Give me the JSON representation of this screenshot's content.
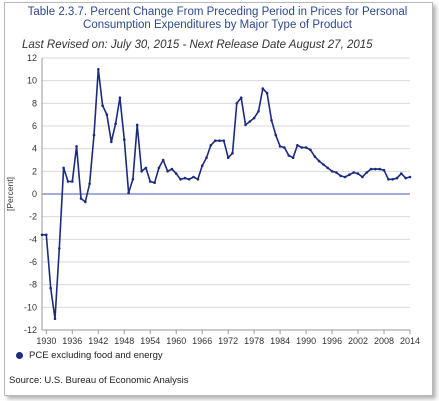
{
  "header": {
    "title_line1": "Table 2.3.7. Percent Change From Preceding Period in Prices for Personal",
    "title_line2": "Consumption Expenditures by Major Type of Product",
    "subtitle": "Last Revised on: July 30, 2015 - Next Release Date August 27, 2015"
  },
  "footer": {
    "legend_label": "PCE excluding food and energy",
    "source": "Source: U.S. Bureau of Economic  Analysis"
  },
  "colors": {
    "series": "#1c2a80",
    "title": "#2c4a8f",
    "grid": "#d9d9d9",
    "zero_line": "#4a5bb0"
  },
  "chart_data": {
    "type": "line",
    "title": "Table 2.3.7. Percent Change From Preceding Period in Prices for Personal Consumption Expenditures by Major Type of Product",
    "ylabel": "[Percent]",
    "xlabel": "",
    "ylim": [
      -12,
      12
    ],
    "xlim": [
      1929,
      2014
    ],
    "yticks": [
      -12,
      -10,
      -8,
      -6,
      -4,
      -2,
      0,
      2,
      4,
      6,
      8,
      10,
      12
    ],
    "xticks": [
      1930,
      1936,
      1942,
      1948,
      1954,
      1960,
      1966,
      1972,
      1978,
      1984,
      1990,
      1996,
      2002,
      2008,
      2014
    ],
    "grid": true,
    "legend_position": "bottom-left",
    "series": [
      {
        "name": "PCE excluding food and energy",
        "color": "#1c2a80",
        "points": [
          [
            1929,
            -3.6
          ],
          [
            1930,
            -3.6
          ],
          [
            1931,
            -8.3
          ],
          [
            1932,
            -11.0
          ],
          [
            1933,
            -4.8
          ],
          [
            1934,
            2.3
          ],
          [
            1935,
            1.1
          ],
          [
            1936,
            1.1
          ],
          [
            1937,
            4.2
          ],
          [
            1938,
            -0.4
          ],
          [
            1939,
            -0.7
          ],
          [
            1940,
            0.9
          ],
          [
            1941,
            5.2
          ],
          [
            1942,
            11.0
          ],
          [
            1943,
            7.8
          ],
          [
            1944,
            7.0
          ],
          [
            1945,
            4.6
          ],
          [
            1946,
            6.2
          ],
          [
            1947,
            8.5
          ],
          [
            1948,
            4.8
          ],
          [
            1949,
            0.1
          ],
          [
            1950,
            1.3
          ],
          [
            1951,
            6.1
          ],
          [
            1952,
            2.0
          ],
          [
            1953,
            2.3
          ],
          [
            1954,
            1.1
          ],
          [
            1955,
            1.0
          ],
          [
            1956,
            2.3
          ],
          [
            1957,
            3.0
          ],
          [
            1958,
            2.0
          ],
          [
            1959,
            2.2
          ],
          [
            1960,
            1.8
          ],
          [
            1961,
            1.3
          ],
          [
            1962,
            1.4
          ],
          [
            1963,
            1.3
          ],
          [
            1964,
            1.5
          ],
          [
            1965,
            1.3
          ],
          [
            1966,
            2.5
          ],
          [
            1967,
            3.2
          ],
          [
            1968,
            4.3
          ],
          [
            1969,
            4.7
          ],
          [
            1970,
            4.7
          ],
          [
            1971,
            4.7
          ],
          [
            1972,
            3.2
          ],
          [
            1973,
            3.6
          ],
          [
            1974,
            8.0
          ],
          [
            1975,
            8.5
          ],
          [
            1976,
            6.1
          ],
          [
            1977,
            6.4
          ],
          [
            1978,
            6.7
          ],
          [
            1979,
            7.3
          ],
          [
            1980,
            9.3
          ],
          [
            1981,
            8.9
          ],
          [
            1982,
            6.5
          ],
          [
            1983,
            5.2
          ],
          [
            1984,
            4.2
          ],
          [
            1985,
            4.1
          ],
          [
            1986,
            3.4
          ],
          [
            1987,
            3.2
          ],
          [
            1988,
            4.3
          ],
          [
            1989,
            4.1
          ],
          [
            1990,
            4.1
          ],
          [
            1991,
            3.9
          ],
          [
            1992,
            3.3
          ],
          [
            1993,
            2.9
          ],
          [
            1994,
            2.6
          ],
          [
            1995,
            2.3
          ],
          [
            1996,
            2.0
          ],
          [
            1997,
            1.9
          ],
          [
            1998,
            1.6
          ],
          [
            1999,
            1.5
          ],
          [
            2000,
            1.7
          ],
          [
            2001,
            1.9
          ],
          [
            2002,
            1.8
          ],
          [
            2003,
            1.5
          ],
          [
            2004,
            1.9
          ],
          [
            2005,
            2.2
          ],
          [
            2006,
            2.2
          ],
          [
            2007,
            2.2
          ],
          [
            2008,
            2.1
          ],
          [
            2009,
            1.3
          ],
          [
            2010,
            1.3
          ],
          [
            2011,
            1.4
          ],
          [
            2012,
            1.8
          ],
          [
            2013,
            1.4
          ],
          [
            2014,
            1.5
          ]
        ]
      }
    ]
  }
}
